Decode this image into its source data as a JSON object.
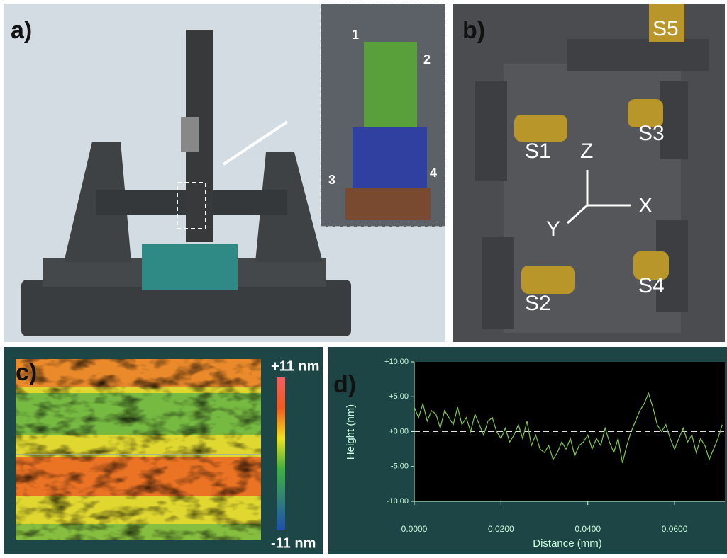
{
  "panels": {
    "a": {
      "label": "a)",
      "callouts": [
        "1",
        "2",
        "3",
        "4"
      ]
    },
    "b": {
      "label": "b)",
      "sensors": [
        "S1",
        "S2",
        "S3",
        "S4",
        "S5"
      ],
      "axes": [
        "Z",
        "X",
        "Y"
      ]
    },
    "c": {
      "label": "c)",
      "colorbar_max": "+11 nm",
      "colorbar_min": "-11 nm"
    }
  },
  "chart_data": {
    "type": "line",
    "panel_label": "d)",
    "x_label": "Distance (mm)",
    "y_label": "Height (nm)",
    "x": [
      0,
      0.001,
      0.002,
      0.003,
      0.004,
      0.005,
      0.006,
      0.007,
      0.008,
      0.009,
      0.01,
      0.011,
      0.012,
      0.013,
      0.014,
      0.015,
      0.016,
      0.017,
      0.018,
      0.019,
      0.02,
      0.021,
      0.022,
      0.023,
      0.024,
      0.025,
      0.026,
      0.027,
      0.028,
      0.029,
      0.03,
      0.031,
      0.032,
      0.033,
      0.034,
      0.035,
      0.036,
      0.037,
      0.038,
      0.039,
      0.04,
      0.041,
      0.042,
      0.043,
      0.044,
      0.045,
      0.046,
      0.047,
      0.048,
      0.049,
      0.05,
      0.051,
      0.052,
      0.053,
      0.054,
      0.055,
      0.056,
      0.057,
      0.058,
      0.059,
      0.06,
      0.061,
      0.062,
      0.063,
      0.064,
      0.065,
      0.066,
      0.067,
      0.068,
      0.069,
      0.07,
      0.071
    ],
    "series": [
      {
        "color": "#7fc94a",
        "values": [
          3.5,
          2,
          4,
          1.5,
          3,
          2.5,
          0.5,
          3,
          2,
          1,
          3.5,
          1,
          2,
          0,
          2.5,
          1,
          -0.5,
          1.5,
          2,
          0,
          -1,
          0.5,
          -1.5,
          -0.5,
          1,
          -1,
          1.5,
          -2,
          -0.5,
          -2.5,
          -3,
          -2,
          -4,
          -3,
          -1.5,
          -2.5,
          -1,
          -3.5,
          -2,
          -1.5,
          -0.5,
          -2.5,
          -1,
          -2,
          0.5,
          -1.5,
          -3,
          -1,
          -4.5,
          -2,
          0,
          1.5,
          3,
          4,
          5.5,
          3.5,
          1,
          0,
          1,
          -1,
          -2.5,
          -1,
          0.5,
          -1.5,
          -0.5,
          -3,
          -1,
          -2,
          -4,
          -2.5,
          -1,
          1
        ]
      }
    ],
    "reference_line": 0,
    "xlim": [
      0,
      0.0716
    ],
    "ylim": [
      -10,
      10
    ],
    "xticks": [
      {
        "value": 0,
        "label": "0.0000"
      },
      {
        "value": 0.02,
        "label": "0.0200"
      },
      {
        "value": 0.04,
        "label": "0.0400"
      },
      {
        "value": 0.06,
        "label": "0.0600"
      }
    ],
    "yticks": [
      {
        "value": 10,
        "label": "+10.00"
      },
      {
        "value": 5,
        "label": "+5.00"
      },
      {
        "value": 0,
        "label": "+0.00"
      },
      {
        "value": -5,
        "label": "-5.00"
      },
      {
        "value": -10,
        "label": "-10.00"
      }
    ]
  }
}
